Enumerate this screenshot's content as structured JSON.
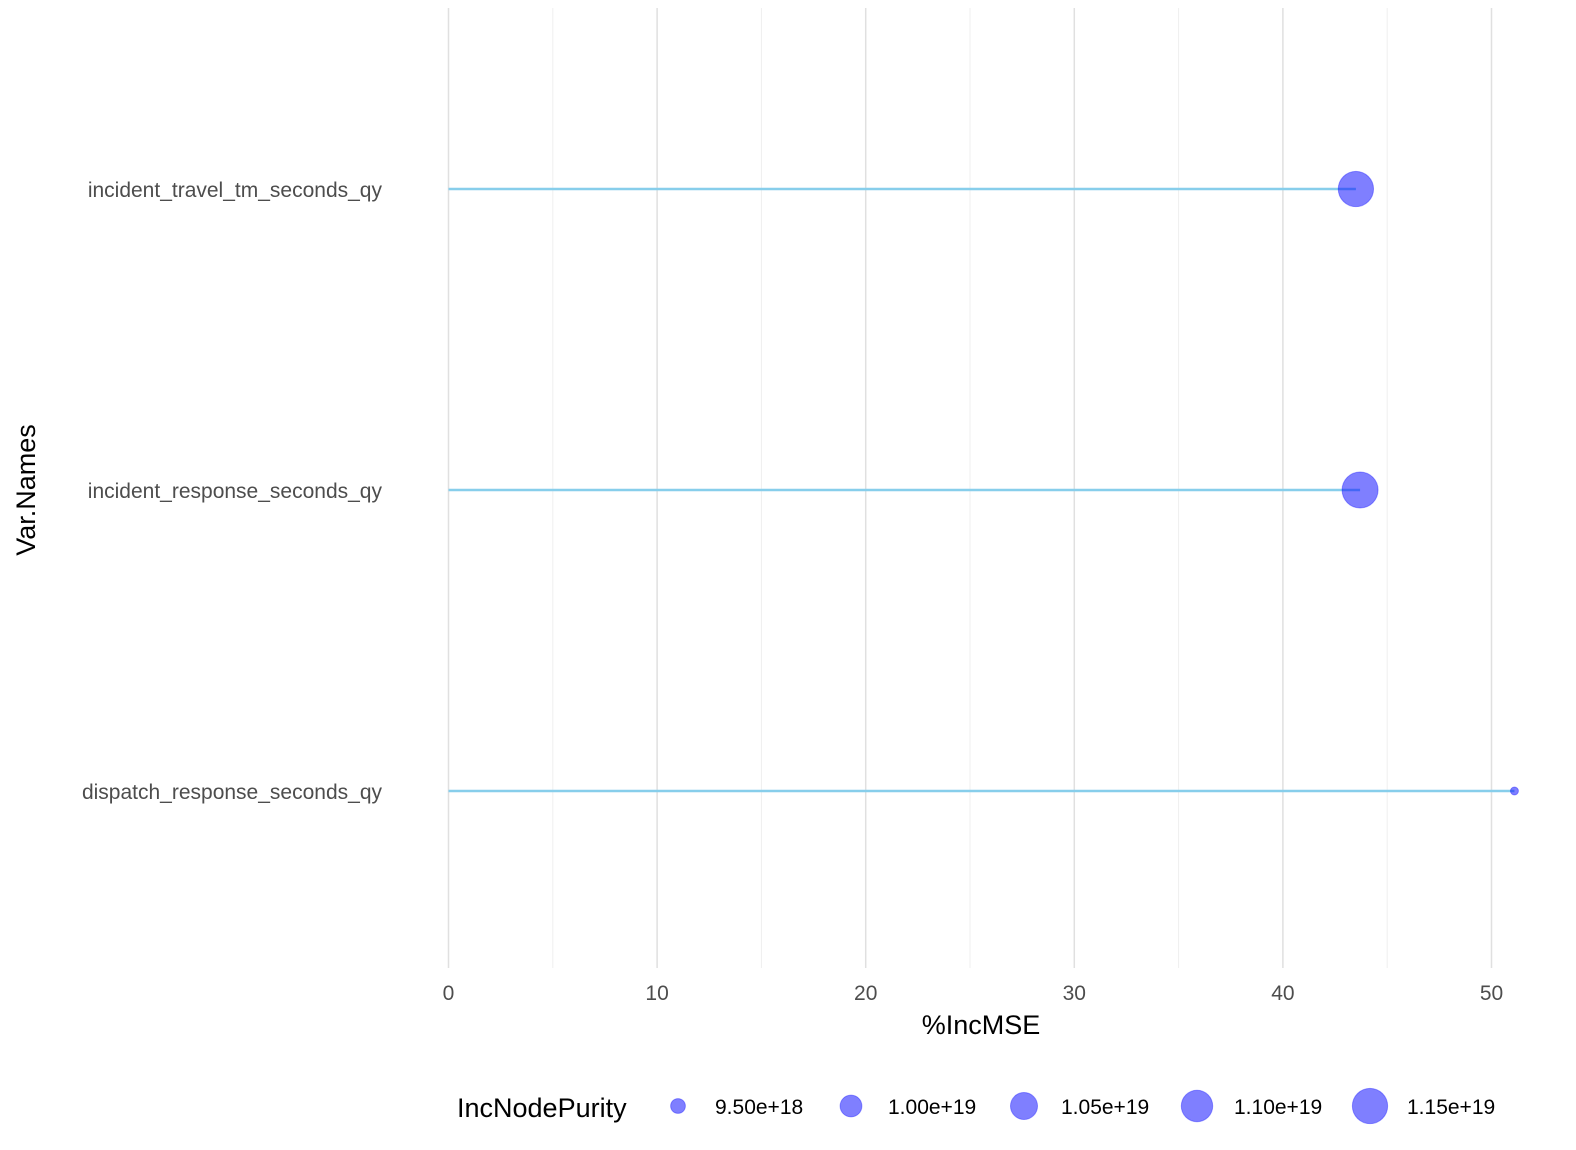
{
  "chart_data": {
    "type": "lollipop",
    "xlabel": "%IncMSE",
    "ylabel": "Var.Names",
    "xlim": [
      0,
      51.5
    ],
    "x_ticks": [
      0,
      10,
      20,
      30,
      40,
      50
    ],
    "x_tick_labels": [
      "0",
      "10",
      "20",
      "30",
      "40",
      "50"
    ],
    "grid": true,
    "categories": [
      "incident_travel_tm_seconds_qy",
      "incident_response_seconds_qy",
      "dispatch_response_seconds_qy"
    ],
    "values": [
      43.5,
      43.7,
      51.1
    ],
    "size_values": [
      1.15e+19,
      1.16e+19,
      9.2e+18
    ],
    "legend": {
      "title": "IncNodePurity",
      "position": "bottom",
      "entries": [
        {
          "value": 9.5e+18,
          "label": "9.50e+18"
        },
        {
          "value": 1e+19,
          "label": "1.00e+19"
        },
        {
          "value": 1.05e+19,
          "label": "1.05e+19"
        },
        {
          "value": 1.1e+19,
          "label": "1.10e+19"
        },
        {
          "value": 1.15e+19,
          "label": "1.15e+19"
        }
      ]
    },
    "colors": {
      "stem": "#87ceeb",
      "point_fill": "#0000ff",
      "point_opacity": 0.5,
      "grid_major": "#e0e0e0",
      "grid_minor": "#efefef"
    }
  }
}
